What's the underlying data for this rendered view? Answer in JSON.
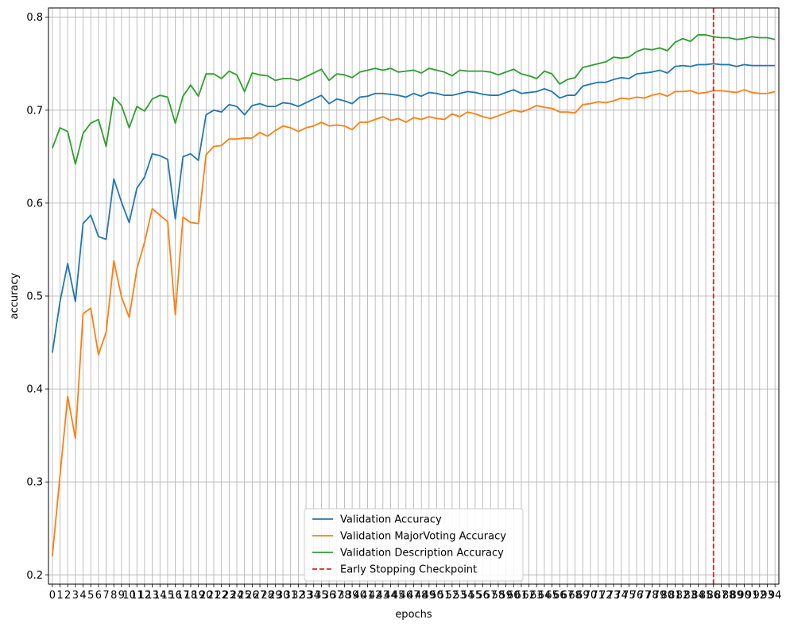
{
  "chart_data": {
    "type": "line",
    "xlabel": "epochs",
    "ylabel": "accuracy",
    "xlim": [
      -0.5,
      94.5
    ],
    "ylim": [
      0.19,
      0.81
    ],
    "yticks": [
      0.2,
      0.3,
      0.4,
      0.5,
      0.6,
      0.7,
      0.8
    ],
    "ytick_labels": [
      "0.2",
      "0.3",
      "0.4",
      "0.5",
      "0.6",
      "0.7",
      "0.8"
    ],
    "xticks_start": 0,
    "xticks_end": 94,
    "grid": true,
    "legend_position": "lower center",
    "series": [
      {
        "name": "Validation Accuracy",
        "color": "#1f77b4",
        "values": [
          0.439,
          0.494,
          0.535,
          0.494,
          0.578,
          0.587,
          0.564,
          0.561,
          0.626,
          0.601,
          0.579,
          0.616,
          0.628,
          0.653,
          0.651,
          0.647,
          0.583,
          0.65,
          0.653,
          0.646,
          0.695,
          0.7,
          0.698,
          0.706,
          0.704,
          0.695,
          0.705,
          0.707,
          0.704,
          0.704,
          0.708,
          0.707,
          0.704,
          0.708,
          0.712,
          0.716,
          0.707,
          0.712,
          0.71,
          0.707,
          0.714,
          0.715,
          0.718,
          0.718,
          0.717,
          0.716,
          0.714,
          0.718,
          0.715,
          0.719,
          0.718,
          0.716,
          0.716,
          0.718,
          0.72,
          0.719,
          0.717,
          0.716,
          0.716,
          0.719,
          0.722,
          0.718,
          0.719,
          0.72,
          0.723,
          0.72,
          0.713,
          0.716,
          0.716,
          0.726,
          0.728,
          0.73,
          0.73,
          0.733,
          0.735,
          0.734,
          0.739,
          0.74,
          0.741,
          0.743,
          0.74,
          0.747,
          0.748,
          0.747,
          0.749,
          0.749,
          0.75,
          0.749,
          0.749,
          0.747,
          0.749,
          0.748,
          0.748,
          0.748,
          0.748
        ]
      },
      {
        "name": "Validation MajorVoting Accuracy",
        "color": "#ff7f0e",
        "values": [
          0.22,
          0.307,
          0.392,
          0.347,
          0.481,
          0.487,
          0.437,
          0.461,
          0.538,
          0.499,
          0.477,
          0.529,
          0.558,
          0.594,
          0.587,
          0.58,
          0.48,
          0.585,
          0.579,
          0.578,
          0.652,
          0.661,
          0.662,
          0.669,
          0.669,
          0.67,
          0.67,
          0.676,
          0.672,
          0.678,
          0.683,
          0.681,
          0.677,
          0.681,
          0.683,
          0.687,
          0.683,
          0.684,
          0.683,
          0.679,
          0.687,
          0.687,
          0.69,
          0.693,
          0.689,
          0.691,
          0.687,
          0.692,
          0.69,
          0.693,
          0.691,
          0.69,
          0.696,
          0.693,
          0.698,
          0.696,
          0.693,
          0.691,
          0.694,
          0.697,
          0.7,
          0.698,
          0.701,
          0.705,
          0.703,
          0.702,
          0.698,
          0.698,
          0.697,
          0.706,
          0.707,
          0.709,
          0.708,
          0.71,
          0.713,
          0.712,
          0.714,
          0.713,
          0.716,
          0.718,
          0.715,
          0.72,
          0.72,
          0.721,
          0.718,
          0.719,
          0.721,
          0.721,
          0.72,
          0.719,
          0.722,
          0.719,
          0.718,
          0.718,
          0.72
        ]
      },
      {
        "name": "Validation Description Accuracy",
        "color": "#2ca02c",
        "values": [
          0.659,
          0.681,
          0.677,
          0.642,
          0.675,
          0.686,
          0.69,
          0.661,
          0.714,
          0.705,
          0.681,
          0.704,
          0.699,
          0.712,
          0.716,
          0.714,
          0.686,
          0.715,
          0.727,
          0.715,
          0.739,
          0.739,
          0.734,
          0.742,
          0.738,
          0.72,
          0.74,
          0.738,
          0.737,
          0.732,
          0.734,
          0.734,
          0.732,
          0.736,
          0.74,
          0.744,
          0.732,
          0.739,
          0.738,
          0.735,
          0.741,
          0.743,
          0.745,
          0.743,
          0.745,
          0.741,
          0.742,
          0.743,
          0.74,
          0.745,
          0.743,
          0.741,
          0.737,
          0.743,
          0.742,
          0.742,
          0.742,
          0.741,
          0.738,
          0.741,
          0.744,
          0.739,
          0.737,
          0.734,
          0.742,
          0.739,
          0.728,
          0.733,
          0.735,
          0.746,
          0.748,
          0.75,
          0.752,
          0.757,
          0.756,
          0.757,
          0.763,
          0.766,
          0.765,
          0.767,
          0.764,
          0.773,
          0.777,
          0.774,
          0.781,
          0.781,
          0.779,
          0.778,
          0.778,
          0.776,
          0.777,
          0.779,
          0.778,
          0.778,
          0.776
        ]
      }
    ],
    "vlines": [
      {
        "name": "Early Stopping Checkpoint",
        "x": 86,
        "color": "#d62728",
        "style": "dashed"
      }
    ]
  }
}
